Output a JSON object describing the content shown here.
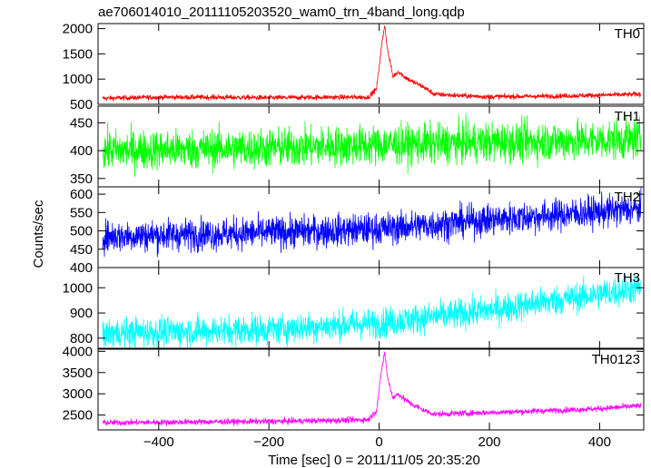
{
  "chart_data": {
    "type": "line",
    "title": "ae706014010_20111105203520_wam0_trn_4band_long.qdp",
    "xlabel": "Time [sec] 0 = 2011/11/05 20:35:20",
    "ylabel": "Counts/sec",
    "xlim": [
      -510,
      480
    ],
    "x_ticks": [
      -400,
      -200,
      0,
      200,
      400
    ],
    "x_tick_labels": [
      "−400",
      "−200",
      "0",
      "200",
      "400"
    ],
    "grid": false,
    "panels": [
      {
        "name": "TH0",
        "color": "#ff0000",
        "ylim": [
          500,
          2100
        ],
        "y_ticks": [
          500,
          1000,
          1500,
          2000
        ],
        "y_tick_labels": [
          "500",
          "1000",
          "1500",
          "2000"
        ],
        "x": [
          -500,
          -400,
          -300,
          -200,
          -100,
          -20,
          -5,
          5,
          10,
          15,
          25,
          35,
          45,
          60,
          80,
          100,
          150,
          200,
          300,
          400,
          475
        ],
        "y": [
          620,
          640,
          640,
          630,
          640,
          640,
          800,
          1700,
          2080,
          1600,
          1050,
          1150,
          1050,
          950,
          850,
          700,
          670,
          650,
          660,
          680,
          700
        ],
        "noise": 25
      },
      {
        "name": "TH1",
        "color": "#00ff00",
        "ylim": [
          335,
          480
        ],
        "y_ticks": [
          350,
          400,
          450
        ],
        "y_tick_labels": [
          "350",
          "400",
          "450"
        ],
        "x": [
          -500,
          -200,
          0,
          200,
          475
        ],
        "y": [
          400,
          405,
          410,
          415,
          420
        ],
        "noise": 18
      },
      {
        "name": "TH2",
        "color": "#0000ff",
        "ylim": [
          400,
          620
        ],
        "y_ticks": [
          400,
          450,
          500,
          550,
          600
        ],
        "y_tick_labels": [
          "400",
          "450",
          "500",
          "550",
          "600"
        ],
        "x": [
          -500,
          -200,
          0,
          200,
          475
        ],
        "y": [
          485,
          495,
          505,
          530,
          560
        ],
        "noise": 22
      },
      {
        "name": "TH3",
        "color": "#00ffff",
        "ylim": [
          760,
          1080
        ],
        "y_ticks": [
          800,
          900,
          1000
        ],
        "y_tick_labels": [
          "800",
          "900",
          "1000"
        ],
        "x": [
          -500,
          -200,
          0,
          200,
          475
        ],
        "y": [
          820,
          835,
          860,
          910,
          1000
        ],
        "noise": 30
      },
      {
        "name": "TH0123",
        "color": "#ff00ff",
        "ylim": [
          2150,
          4050
        ],
        "y_ticks": [
          2500,
          3000,
          3500,
          4000
        ],
        "y_tick_labels": [
          "2500",
          "3000",
          "3500",
          "4000"
        ],
        "x": [
          -500,
          -400,
          -300,
          -200,
          -100,
          -20,
          -5,
          5,
          10,
          15,
          25,
          35,
          45,
          60,
          80,
          100,
          150,
          200,
          300,
          400,
          475
        ],
        "y": [
          2320,
          2330,
          2340,
          2350,
          2370,
          2390,
          2600,
          3600,
          3980,
          3400,
          2900,
          3000,
          2880,
          2750,
          2620,
          2520,
          2540,
          2560,
          2600,
          2650,
          2720
        ],
        "noise": 35
      }
    ]
  }
}
